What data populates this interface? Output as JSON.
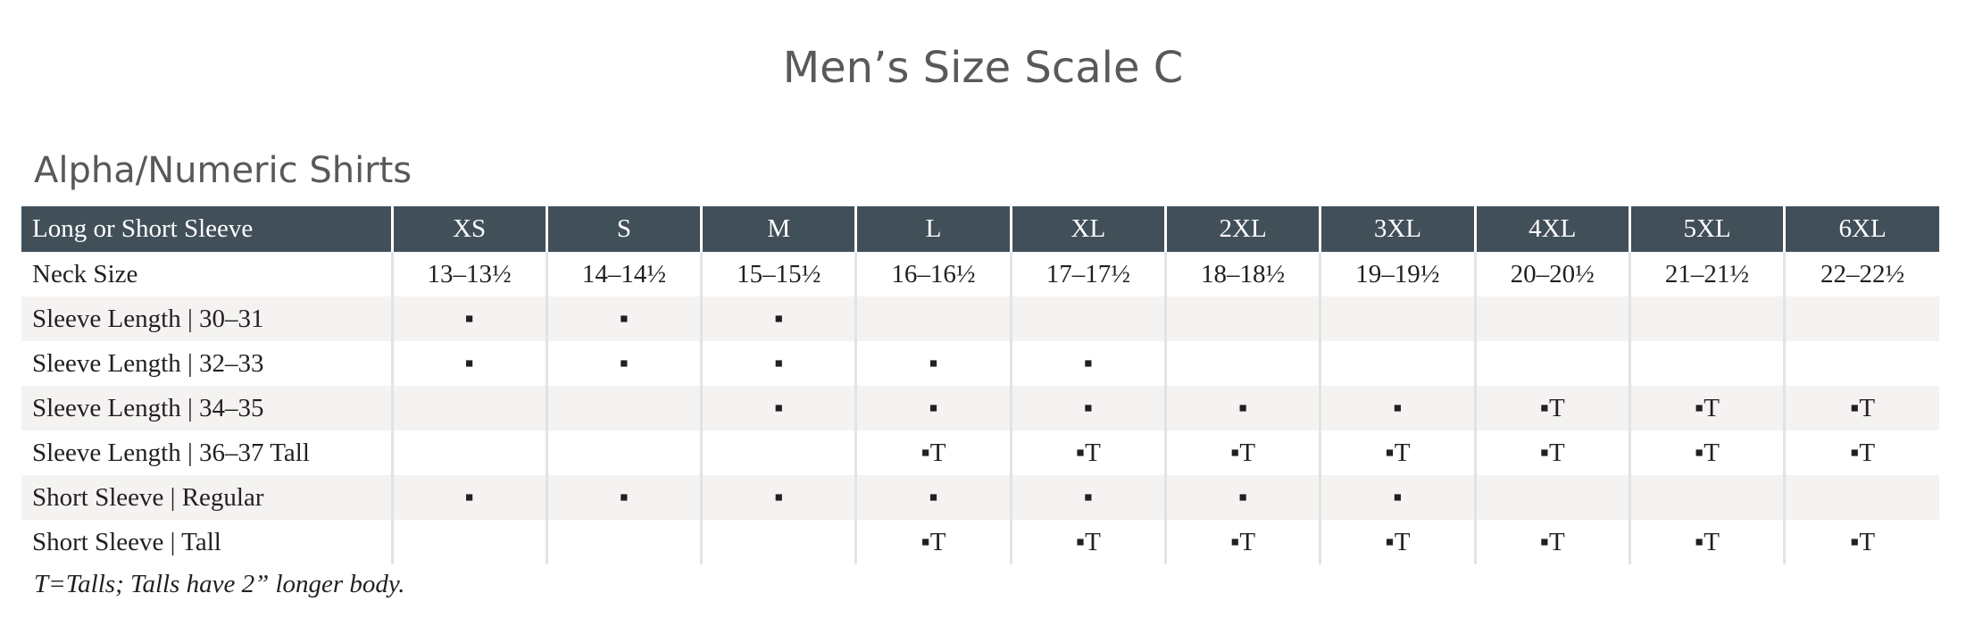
{
  "title": "Men’s Size Scale C",
  "subtitle": "Alpha/Numeric Shirts",
  "table": {
    "header": [
      "Long or Short Sleeve",
      "XS",
      "S",
      "M",
      "L",
      "XL",
      "2XL",
      "3XL",
      "4XL",
      "5XL",
      "6XL"
    ],
    "rows": [
      [
        "Neck Size",
        "13–13½",
        "14–14½",
        "15–15½",
        "16–16½",
        "17–17½",
        "18–18½",
        "19–19½",
        "20–20½",
        "21–21½",
        "22–22½"
      ],
      [
        "Sleeve Length | 30–31",
        "▪",
        "▪",
        "▪",
        null,
        null,
        null,
        null,
        null,
        null,
        null
      ],
      [
        "Sleeve Length | 32–33",
        "▪",
        "▪",
        "▪",
        "▪",
        "▪",
        null,
        null,
        null,
        null,
        null
      ],
      [
        "Sleeve Length | 34–35",
        null,
        null,
        "▪",
        "▪",
        "▪",
        "▪",
        "▪",
        "▪T",
        "▪T",
        "▪T"
      ],
      [
        "Sleeve Length | 36–37 Tall",
        null,
        null,
        null,
        "▪T",
        "▪T",
        "▪T",
        "▪T",
        "▪T",
        "▪T",
        "▪T"
      ],
      [
        "Short Sleeve | Regular",
        "▪",
        "▪",
        "▪",
        "▪",
        "▪",
        "▪",
        "▪",
        null,
        null,
        null
      ],
      [
        "Short Sleeve | Tall",
        null,
        null,
        null,
        "▪T",
        "▪T",
        "▪T",
        "▪T",
        "▪T",
        "▪T",
        "▪T"
      ]
    ]
  },
  "footnote": "T=Talls; Talls have 2” longer body."
}
